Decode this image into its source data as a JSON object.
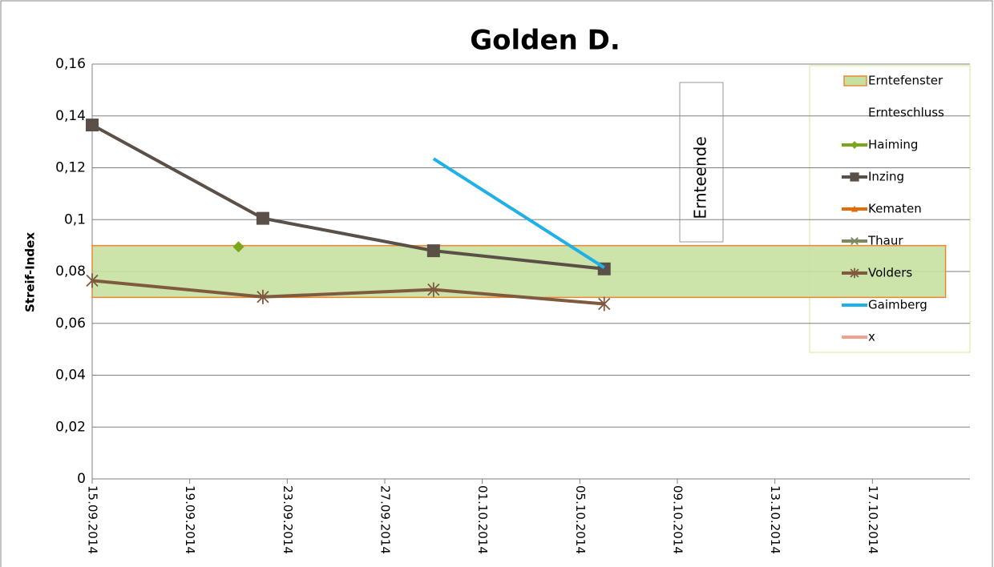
{
  "chart_data": {
    "type": "line",
    "title": "Golden D.",
    "y_label": "Streif-Index",
    "xlim": [
      "15.09.2014",
      "21.10.2014"
    ],
    "xticks": [
      "15.09.2014",
      "19.09.2014",
      "23.09.2014",
      "27.09.2014",
      "01.10.2014",
      "05.10.2014",
      "09.10.2014",
      "13.10.2014",
      "17.10.2014"
    ],
    "ylim": [
      0,
      0.16
    ],
    "yticks": [
      0,
      {
        "value": 0.02,
        "label": "0,02"
      },
      {
        "value": 0.04,
        "label": "0,04"
      },
      {
        "value": 0.06,
        "label": "0,06"
      },
      {
        "value": 0.08,
        "label": "0,08"
      },
      {
        "value": 0.1,
        "label": "0,1"
      },
      {
        "value": 0.12,
        "label": "0,12"
      },
      {
        "value": 0.14,
        "label": "0,14"
      },
      {
        "value": 0.16,
        "label": "0,16"
      }
    ],
    "grid": true,
    "legend": "right",
    "band": {
      "name": "Erntefenster",
      "x": [
        "15.09.2014",
        "20.10.2014"
      ],
      "values": [
        0.07,
        0.09
      ],
      "color": "#c6e0a0",
      "edge_color": "#e8883a"
    },
    "annotations": [
      {
        "text": "Ernteende"
      }
    ],
    "series": [
      {
        "name": "Ernteschluss",
        "color": "#ffffff",
        "marker": "none",
        "x": [],
        "values": []
      },
      {
        "name": "Haiming",
        "color": "#7aa71a",
        "marker": "diamond",
        "x": [
          "21.09.2014"
        ],
        "values": [
          0.0895
        ]
      },
      {
        "name": "Inzing",
        "color": "#5a5048",
        "marker": "square",
        "x": [
          "15.09.2014",
          "22.09.2014",
          "29.09.2014",
          "06.10.2014"
        ],
        "values": [
          0.1365,
          0.1005,
          0.088,
          0.081
        ]
      },
      {
        "name": "Kematen",
        "color": "#e36c0a",
        "marker": "triangle",
        "x": [],
        "values": []
      },
      {
        "name": "Thaur",
        "color": "#7b8a5e",
        "marker": "cross",
        "x": [],
        "values": []
      },
      {
        "name": "Volders",
        "color": "#7f5a3e",
        "marker": "star",
        "x": [
          "15.09.2014",
          "22.09.2014",
          "29.09.2014",
          "06.10.2014"
        ],
        "values": [
          0.0765,
          0.0702,
          0.073,
          0.0675
        ]
      },
      {
        "name": "Gaimberg",
        "color": "#1fb0e8",
        "marker": "none",
        "x": [
          "29.09.2014",
          "06.10.2014"
        ],
        "values": [
          0.1235,
          0.0815
        ]
      },
      {
        "name": "x",
        "color": "#f4a090",
        "marker": "none",
        "x": [],
        "values": []
      }
    ]
  }
}
